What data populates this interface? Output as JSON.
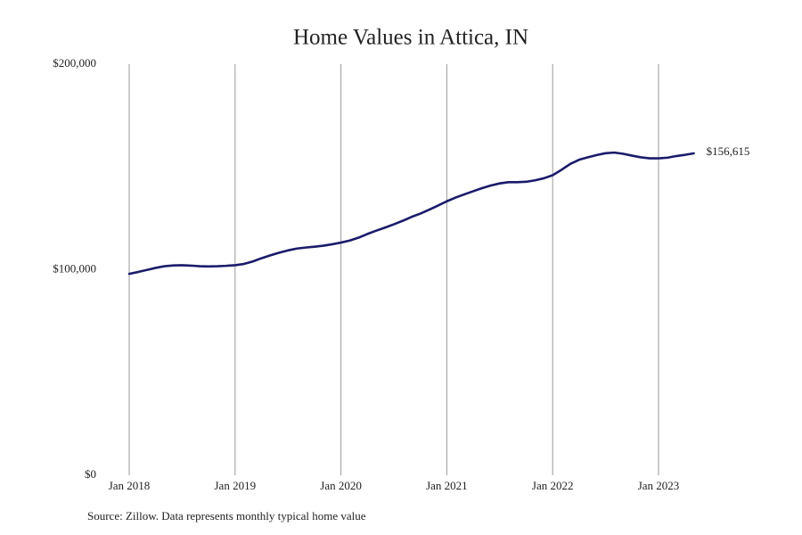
{
  "chart_data": {
    "type": "line",
    "title": "Home Values in Attica, IN",
    "source": "Source: Zillow. Data represents monthly typical home value",
    "x": [
      "2018-01",
      "2018-02",
      "2018-03",
      "2018-04",
      "2018-05",
      "2018-06",
      "2018-07",
      "2018-08",
      "2018-09",
      "2018-10",
      "2018-11",
      "2018-12",
      "2019-01",
      "2019-02",
      "2019-03",
      "2019-04",
      "2019-05",
      "2019-06",
      "2019-07",
      "2019-08",
      "2019-09",
      "2019-10",
      "2019-11",
      "2019-12",
      "2020-01",
      "2020-02",
      "2020-03",
      "2020-04",
      "2020-05",
      "2020-06",
      "2020-07",
      "2020-08",
      "2020-09",
      "2020-10",
      "2020-11",
      "2020-12",
      "2021-01",
      "2021-02",
      "2021-03",
      "2021-04",
      "2021-05",
      "2021-06",
      "2021-07",
      "2021-08",
      "2021-09",
      "2021-10",
      "2021-11",
      "2021-12",
      "2022-01",
      "2022-02",
      "2022-03",
      "2022-04",
      "2022-05",
      "2022-06",
      "2022-07",
      "2022-08",
      "2022-09",
      "2022-10",
      "2022-11",
      "2022-12",
      "2023-01",
      "2023-02",
      "2023-03",
      "2023-04",
      "2023-05"
    ],
    "values": [
      98000,
      98900,
      99900,
      100900,
      101700,
      102100,
      102200,
      102000,
      101700,
      101600,
      101700,
      101900,
      102200,
      102800,
      104000,
      105600,
      107000,
      108300,
      109400,
      110300,
      110800,
      111200,
      111700,
      112400,
      113200,
      114200,
      115600,
      117400,
      119000,
      120500,
      122100,
      123800,
      125700,
      127300,
      129200,
      131200,
      133300,
      135100,
      136700,
      138200,
      139700,
      141000,
      142000,
      142600,
      142600,
      142800,
      143500,
      144500,
      146000,
      148600,
      151500,
      153500,
      154700,
      155800,
      156700,
      157000,
      156400,
      155500,
      154700,
      154200,
      154200,
      154500,
      155300,
      155900,
      156615
    ],
    "value_labels": [
      null,
      null,
      null,
      null,
      null,
      null,
      null,
      null,
      null,
      null,
      null,
      null,
      null,
      null,
      null,
      null,
      null,
      null,
      null,
      null,
      null,
      null,
      null,
      null,
      null,
      null,
      null,
      null,
      null,
      null,
      null,
      null,
      null,
      null,
      null,
      null,
      null,
      null,
      null,
      null,
      null,
      null,
      null,
      null,
      null,
      null,
      null,
      null,
      null,
      null,
      null,
      null,
      null,
      null,
      null,
      null,
      null,
      null,
      null,
      null,
      null,
      null,
      null,
      null,
      "$156,615"
    ],
    "color": "#1b1b6b",
    "xlim": [
      "2018-01",
      "2023-01"
    ],
    "xticks": [
      {
        "value": "2018-01",
        "label": "Jan 2018"
      },
      {
        "value": "2019-01",
        "label": "Jan 2019"
      },
      {
        "value": "2020-01",
        "label": "Jan 2020"
      },
      {
        "value": "2021-01",
        "label": "Jan 2021"
      },
      {
        "value": "2022-01",
        "label": "Jan 2022"
      },
      {
        "value": "2023-01",
        "label": "Jan 2023"
      }
    ],
    "ylim": [
      0,
      200000
    ],
    "yticks": [
      {
        "value": 0,
        "label": "$0"
      },
      {
        "value": 100000,
        "label": "$100,000"
      },
      {
        "value": 200000,
        "label": "$200,000"
      }
    ],
    "grid": "x"
  }
}
